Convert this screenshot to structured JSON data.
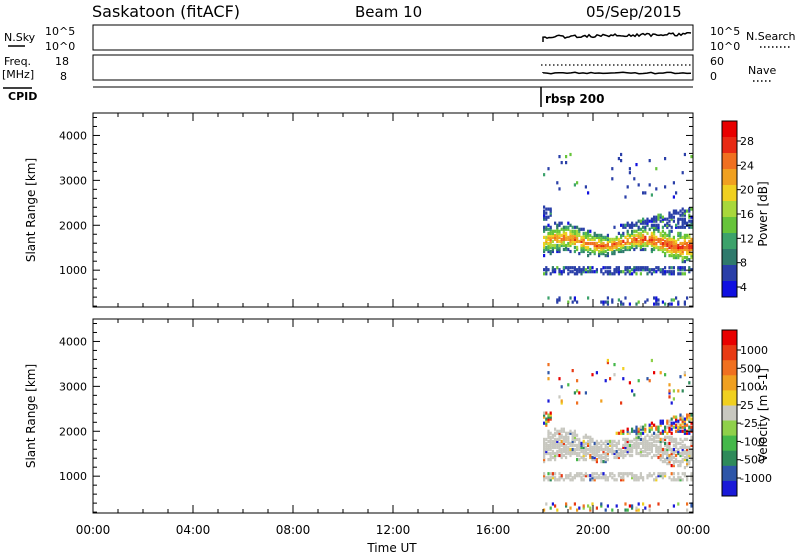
{
  "header": {
    "site": "Saskatoon (fitACF)",
    "beam": "Beam 10",
    "date": "05/Sep/2015"
  },
  "top_panels": {
    "nsky": {
      "label": "N.Sky",
      "tick_top": "10^5",
      "tick_bottom": "10^0",
      "right_label": "N.Search",
      "right_tick_top": "10^5",
      "right_tick_bottom": "10^0"
    },
    "freq": {
      "label_line1": "Freq.",
      "label_line2": "[MHz]",
      "tick_top": "18",
      "tick_bottom": "8",
      "right_label": "Nave",
      "right_tick_top": "60",
      "right_tick_bottom": "0"
    },
    "cpid": {
      "label": "CPID",
      "program": "rbsp 200"
    }
  },
  "chart_data": [
    {
      "type": "heatmap",
      "name": "power",
      "xlabel": "",
      "ylabel": "Slant Range [km]",
      "ylim": [
        180,
        4500
      ],
      "y_ticks": [
        "1000",
        "2000",
        "3000",
        "4000"
      ],
      "x_hours": [
        0,
        24
      ],
      "data_start_hour": 18,
      "colorbar": {
        "label": "Power [dB]",
        "tick_labels": [
          "4",
          "8",
          "12",
          "16",
          "20",
          "24",
          "28"
        ],
        "colors": [
          "#1010e0",
          "#2a3fa8",
          "#2f7a6c",
          "#3ca26b",
          "#66c43a",
          "#a8d83b",
          "#f0d020",
          "#f0a020",
          "#f07020",
          "#e82a14",
          "#e80000"
        ]
      }
    },
    {
      "type": "heatmap",
      "name": "velocity",
      "xlabel": "Time UT",
      "ylabel": "Slant Range [km]",
      "ylim": [
        180,
        4500
      ],
      "y_ticks": [
        "1000",
        "2000",
        "3000",
        "4000"
      ],
      "x_ticks": [
        "00:00",
        "04:00",
        "08:00",
        "12:00",
        "16:00",
        "20:00",
        "00:00"
      ],
      "colorbar": {
        "label": "Velocity [m s-1]",
        "tick_labels": [
          "1000",
          "500",
          "100",
          "25",
          "-25",
          "-100",
          "-500",
          "-1000"
        ],
        "colors": [
          "#1a1ad8",
          "#2e56a8",
          "#2e8a5a",
          "#44b84a",
          "#8fd04a",
          "#c8c8c0",
          "#f0d020",
          "#f0a020",
          "#f07020",
          "#e83a14",
          "#e80000"
        ]
      }
    }
  ]
}
